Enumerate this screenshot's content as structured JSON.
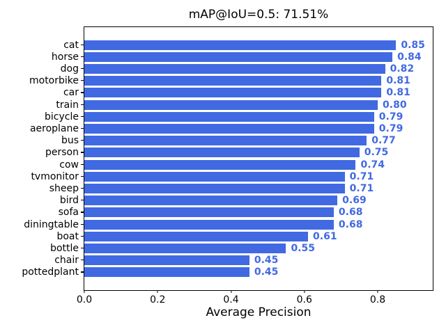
{
  "colors": {
    "bar": "#4169E1",
    "value_label": "#4169E1",
    "text": "#000000",
    "spine": "#000000",
    "background": "#ffffff"
  },
  "chart_data": {
    "type": "bar",
    "orientation": "horizontal",
    "title": "mAP@IoU=0.5: 71.51%",
    "xlabel": "Average Precision",
    "ylabel": "",
    "categories": [
      "cat",
      "horse",
      "dog",
      "motorbike",
      "car",
      "train",
      "bicycle",
      "aeroplane",
      "bus",
      "person",
      "cow",
      "tvmonitor",
      "sheep",
      "bird",
      "sofa",
      "diningtable",
      "boat",
      "bottle",
      "chair",
      "pottedplant"
    ],
    "values": [
      0.85,
      0.84,
      0.82,
      0.81,
      0.81,
      0.8,
      0.79,
      0.79,
      0.77,
      0.75,
      0.74,
      0.71,
      0.71,
      0.69,
      0.68,
      0.68,
      0.61,
      0.55,
      0.45,
      0.45
    ],
    "value_labels": [
      "0.85",
      "0.84",
      "0.82",
      "0.81",
      "0.81",
      "0.80",
      "0.79",
      "0.79",
      "0.77",
      "0.75",
      "0.74",
      "0.71",
      "0.71",
      "0.69",
      "0.68",
      "0.68",
      "0.61",
      "0.55",
      "0.45",
      "0.45"
    ],
    "xlim": [
      0,
      0.95
    ],
    "xticks": [
      0.0,
      0.2,
      0.4,
      0.6,
      0.8
    ],
    "xtick_labels": [
      "0.0",
      "0.2",
      "0.4",
      "0.6",
      "0.8"
    ],
    "grid": false,
    "legend": null
  }
}
